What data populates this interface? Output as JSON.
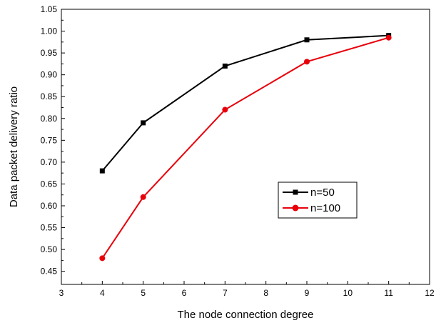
{
  "chart_data": {
    "type": "line",
    "title": "",
    "xlabel": "The node connection degree",
    "ylabel": "Data packet delivery ratio",
    "xlim": [
      3,
      12
    ],
    "ylim": [
      0.42,
      1.05
    ],
    "xticks": [
      3,
      4,
      5,
      6,
      7,
      8,
      9,
      10,
      11,
      12
    ],
    "yticks": [
      0.45,
      0.5,
      0.55,
      0.6,
      0.65,
      0.7,
      0.75,
      0.8,
      0.85,
      0.9,
      0.95,
      1.0,
      1.05
    ],
    "grid": false,
    "legend_position": "center-right",
    "series": [
      {
        "name": "n=50",
        "color": "#000000",
        "marker": "square",
        "x": [
          4,
          5,
          7,
          9,
          11
        ],
        "y": [
          0.68,
          0.79,
          0.92,
          0.98,
          0.99
        ]
      },
      {
        "name": "n=100",
        "color": "#e8000b",
        "marker": "circle",
        "x": [
          4,
          5,
          7,
          9,
          11
        ],
        "y": [
          0.48,
          0.62,
          0.82,
          0.93,
          0.985
        ]
      }
    ]
  }
}
